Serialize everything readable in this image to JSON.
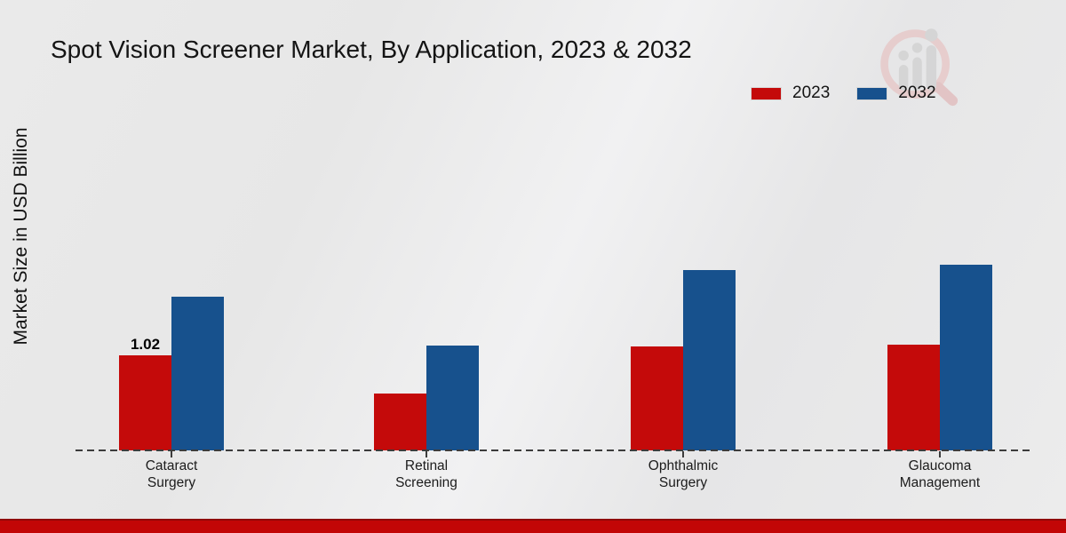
{
  "title": "Spot Vision Screener Market, By Application, 2023 & 2032",
  "ylabel": "Market Size in USD Billion",
  "watermark_icon": "magnifier-growth-chart-logo",
  "colors": {
    "series_2023": "#c40a0a",
    "series_2032": "#17518d",
    "footer_bar": "#c20606",
    "baseline": "#3c3c3c",
    "background": "#eaeaea",
    "watermark_ring": "#e7c9c9",
    "watermark_bars": "#d3d3d3"
  },
  "chart_data": {
    "type": "bar",
    "title": "Spot Vision Screener Market, By Application, 2023 & 2032",
    "xlabel": "",
    "ylabel": "Market Size in USD Billion",
    "categories": [
      "Cataract Surgery",
      "Retinal Screening",
      "Ophthalmic Surgery",
      "Glaucoma Management"
    ],
    "category_label_lines": [
      [
        "Cataract",
        "Surgery"
      ],
      [
        "Retinal",
        "Screening"
      ],
      [
        "Ophthalmic",
        "Surgery"
      ],
      [
        "Glaucoma",
        "Management"
      ]
    ],
    "series": [
      {
        "name": "2023",
        "color": "#c40a0a",
        "values": [
          1.02,
          0.61,
          1.11,
          1.13
        ]
      },
      {
        "name": "2032",
        "color": "#17518d",
        "values": [
          1.65,
          1.12,
          1.93,
          1.99
        ]
      }
    ],
    "shown_value_labels": [
      {
        "series_index": 0,
        "category_index": 0,
        "text": "1.02"
      }
    ],
    "ylim": [
      0,
      2.2
    ],
    "grid": false,
    "axis_style": "dashed-baseline-only",
    "legend_position": "top-right"
  }
}
